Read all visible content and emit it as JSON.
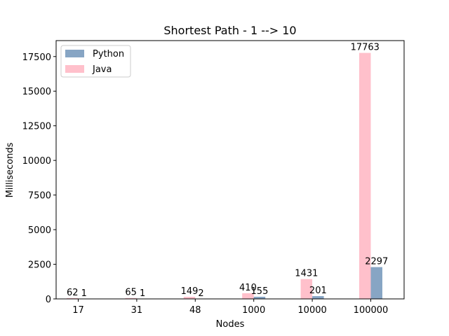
{
  "chart_data": {
    "type": "bar",
    "title": "Shortest Path - 1 --> 10",
    "xlabel": "Nodes",
    "ylabel": "Milliseconds",
    "categories": [
      "17",
      "31",
      "48",
      "1000",
      "10000",
      "100000"
    ],
    "series": [
      {
        "name": "Python",
        "color": "#87a5c4",
        "values": [
          1,
          1,
          2,
          155,
          201,
          2297
        ]
      },
      {
        "name": "Java",
        "color": "#ffc0cb",
        "values": [
          62,
          65,
          149,
          410,
          1431,
          17763
        ]
      }
    ],
    "data_labels": {
      "Python": [
        "1",
        "1",
        "2",
        "155",
        "201",
        "2297"
      ],
      "Java": [
        "62",
        "65",
        "149",
        "410",
        "1431",
        "17763"
      ]
    },
    "yticks": [
      "0",
      "2500",
      "5000",
      "7500",
      "10000",
      "12500",
      "15000",
      "17500"
    ],
    "ylim": [
      0,
      18651
    ],
    "legend_position": "top-left",
    "grid": false
  }
}
